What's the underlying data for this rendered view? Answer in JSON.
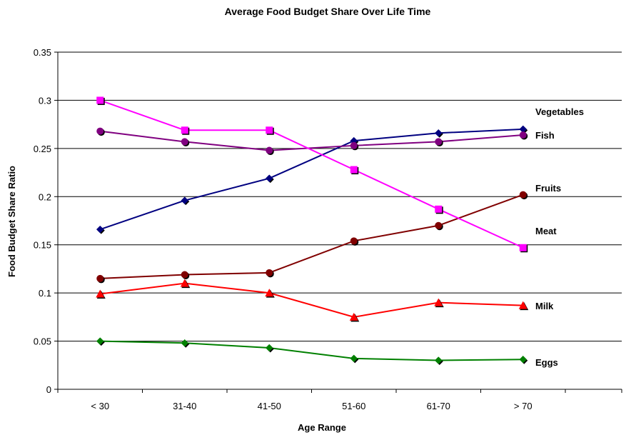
{
  "chart_data": {
    "type": "line",
    "title": "Average Food Budget Share Over Life Time",
    "xlabel": "Age Range",
    "ylabel": "Food Budget Share Ratio",
    "categories": [
      "< 30",
      "31-40",
      "41-50",
      "51-60",
      "61-70",
      "> 70"
    ],
    "ylim": [
      0,
      0.35
    ],
    "yticks": [
      "0",
      "0.05",
      "0.1",
      "0.15",
      "0.2",
      "0.25",
      "0.3",
      "0.35"
    ],
    "grid": true,
    "legend": "direct labels at right end of lines",
    "series": [
      {
        "name": "Vegetables",
        "color": "#000080",
        "marker": "diamond",
        "values": [
          0.166,
          0.196,
          0.219,
          0.258,
          0.266,
          0.27
        ]
      },
      {
        "name": "Fish",
        "color": "#800080",
        "marker": "circle",
        "values": [
          0.268,
          0.257,
          0.248,
          0.253,
          0.257,
          0.264
        ]
      },
      {
        "name": "Fruits",
        "color": "#800000",
        "marker": "circle",
        "values": [
          0.115,
          0.119,
          0.121,
          0.154,
          0.17,
          0.202
        ]
      },
      {
        "name": "Meat",
        "color": "#FF00FF",
        "marker": "square",
        "values": [
          0.3,
          0.269,
          0.269,
          0.228,
          0.187,
          0.147
        ]
      },
      {
        "name": "Milk",
        "color": "#FF0000",
        "marker": "triangle",
        "values": [
          0.099,
          0.11,
          0.1,
          0.075,
          0.09,
          0.087
        ]
      },
      {
        "name": "Eggs",
        "color": "#008000",
        "marker": "diamond",
        "values": [
          0.05,
          0.048,
          0.043,
          0.032,
          0.03,
          0.031
        ]
      }
    ]
  }
}
